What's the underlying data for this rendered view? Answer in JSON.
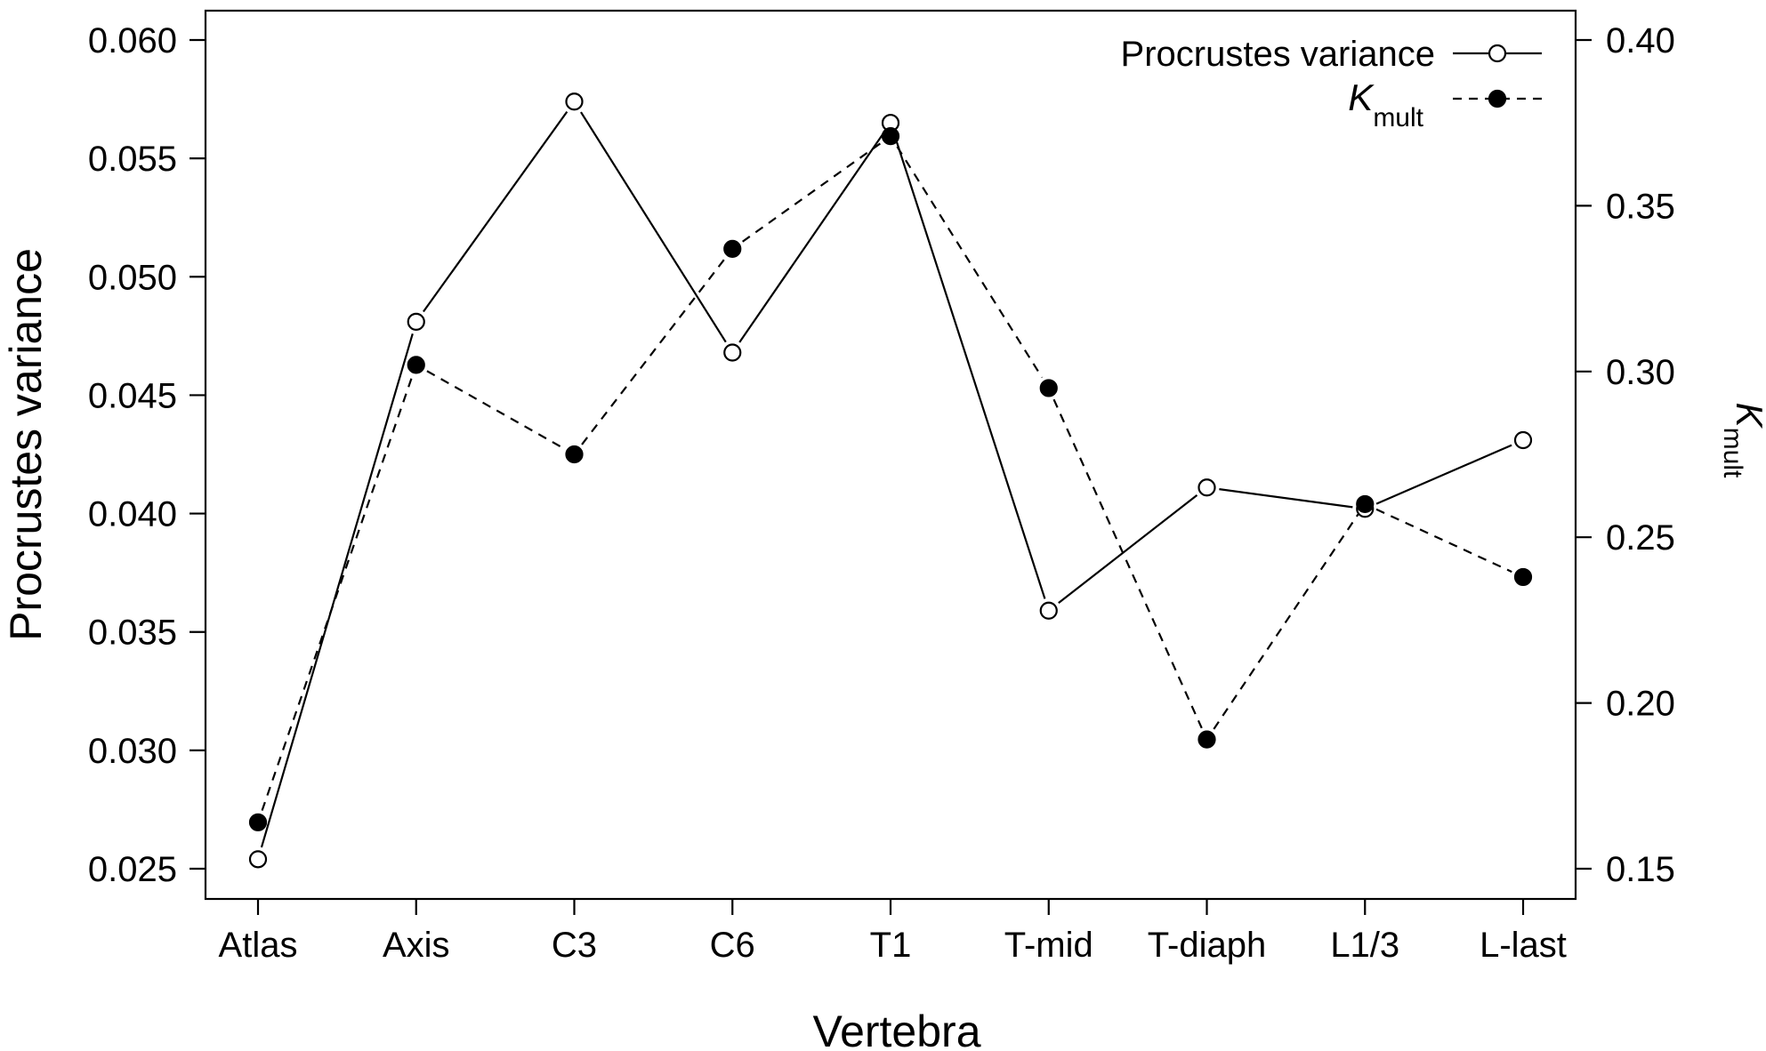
{
  "chart_data": {
    "type": "line",
    "xlabel": "Vertebra",
    "ylabel_left": "Procrustes variance",
    "ylabel_right": {
      "base": "K",
      "sub": "mult"
    },
    "categories": [
      "Atlas",
      "Axis",
      "C3",
      "C6",
      "T1",
      "T-mid",
      "T-diaph",
      "L1/3",
      "L-last"
    ],
    "ylim_left": [
      0.025,
      0.06
    ],
    "ylim_right": [
      0.15,
      0.4
    ],
    "yticks_left": [
      "0.025",
      "0.030",
      "0.035",
      "0.040",
      "0.045",
      "0.050",
      "0.055",
      "0.060"
    ],
    "yticks_right": [
      "0.15",
      "0.20",
      "0.25",
      "0.30",
      "0.35",
      "0.40"
    ],
    "grid": false,
    "legend_position": "top-right",
    "series": [
      {
        "name": "Procrustes variance",
        "axis": "left",
        "line_style": "solid",
        "marker": "open-circle",
        "values": [
          0.0254,
          0.0481,
          0.0574,
          0.0468,
          0.0565,
          0.0359,
          0.0411,
          0.0402,
          0.0431
        ]
      },
      {
        "name": {
          "base": "K",
          "sub": "mult"
        },
        "axis": "right",
        "line_style": "dashed",
        "marker": "filled-circle",
        "values": [
          0.164,
          0.302,
          0.275,
          0.337,
          0.371,
          0.295,
          0.189,
          0.26,
          0.238
        ]
      }
    ]
  }
}
